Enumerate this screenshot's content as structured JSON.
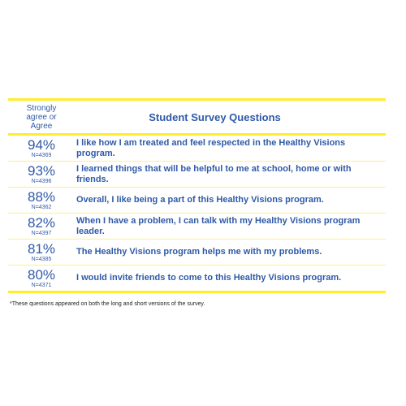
{
  "header": {
    "agree_label": "Strongly agree or Agree",
    "title": "Student Survey Questions"
  },
  "rows": [
    {
      "percent": "94%",
      "n": "N=4369",
      "question": "I like how I am treated and feel respected in the Healthy Visions program."
    },
    {
      "percent": "93%",
      "n": "N=4396",
      "question": "I learned things that will be helpful to me at school, home or with friends."
    },
    {
      "percent": "88%",
      "n": "N=4362",
      "question": "Overall, I like being a part of this Healthy Visions program."
    },
    {
      "percent": "82%",
      "n": "N=4397",
      "question": "When I have a problem, I can talk with my Healthy Visions program leader."
    },
    {
      "percent": "81%",
      "n": "N=4385",
      "question": "The Healthy Visions program helps me with my problems."
    },
    {
      "percent": "80%",
      "n": "N=4371",
      "question": "I would invite friends to come to this Healthy Visions program."
    }
  ],
  "footnote": "*These questions appeared on both the long and short versions of the survey.",
  "colors": {
    "text": "#2f5aa8",
    "rule": "#ffec2a"
  }
}
